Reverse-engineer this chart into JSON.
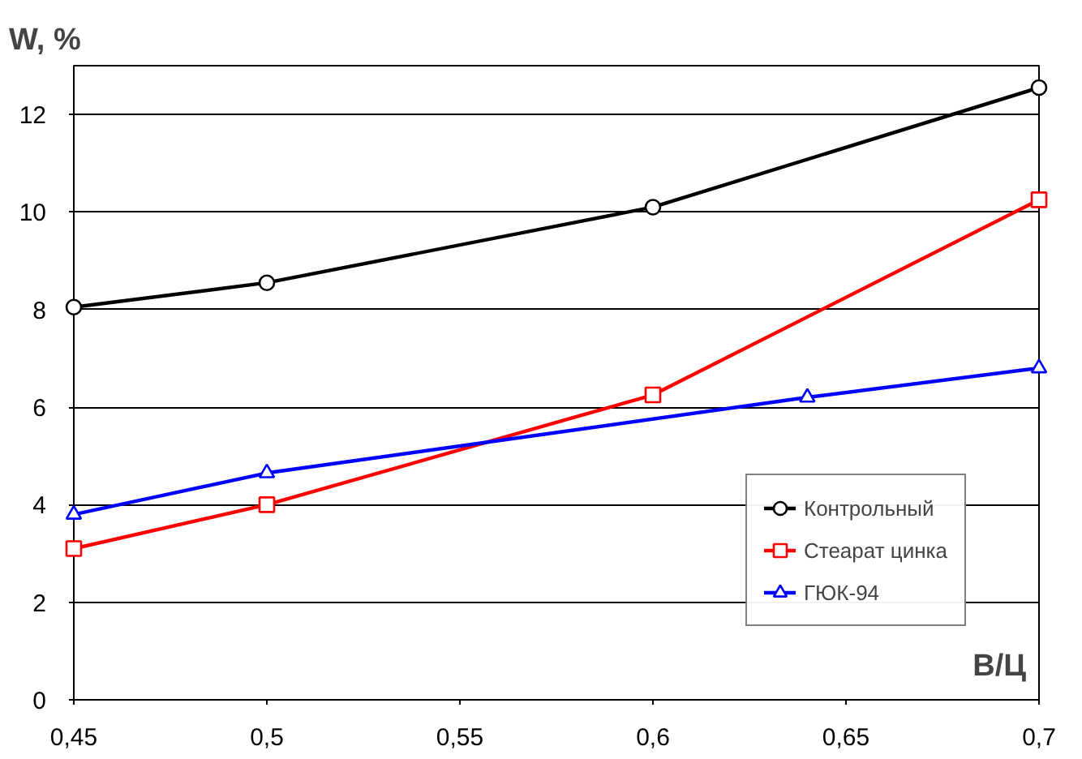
{
  "chart_data": {
    "type": "line",
    "xlabel": "В/Ц",
    "ylabel": "W, %",
    "xlim": [
      0.45,
      0.7
    ],
    "ylim": [
      0,
      13
    ],
    "xticks": [
      {
        "value": 0.45,
        "label": "0,45"
      },
      {
        "value": 0.5,
        "label": "0,5"
      },
      {
        "value": 0.55,
        "label": "0,55"
      },
      {
        "value": 0.6,
        "label": "0,6"
      },
      {
        "value": 0.65,
        "label": "0,65"
      },
      {
        "value": 0.7,
        "label": "0,7"
      }
    ],
    "yticks": [
      0,
      2,
      4,
      6,
      8,
      10,
      12
    ],
    "grid": "y",
    "legend": "bottom right",
    "line_style": "solid",
    "series": [
      {
        "name": "Контрольный",
        "color": "#000000",
        "marker": "circle",
        "x": [
          0.45,
          0.5,
          0.6,
          0.7
        ],
        "values": [
          8.05,
          8.55,
          10.1,
          12.55
        ]
      },
      {
        "name": "Стеарат цинка",
        "color": "#ff0000",
        "marker": "square",
        "x": [
          0.45,
          0.5,
          0.6,
          0.7
        ],
        "values": [
          3.1,
          4.0,
          6.25,
          10.25
        ]
      },
      {
        "name": "ГЮК-94",
        "color": "#0000ff",
        "marker": "triangle",
        "x": [
          0.45,
          0.5,
          0.64,
          0.7
        ],
        "values": [
          3.8,
          4.65,
          6.2,
          6.8
        ]
      }
    ]
  }
}
